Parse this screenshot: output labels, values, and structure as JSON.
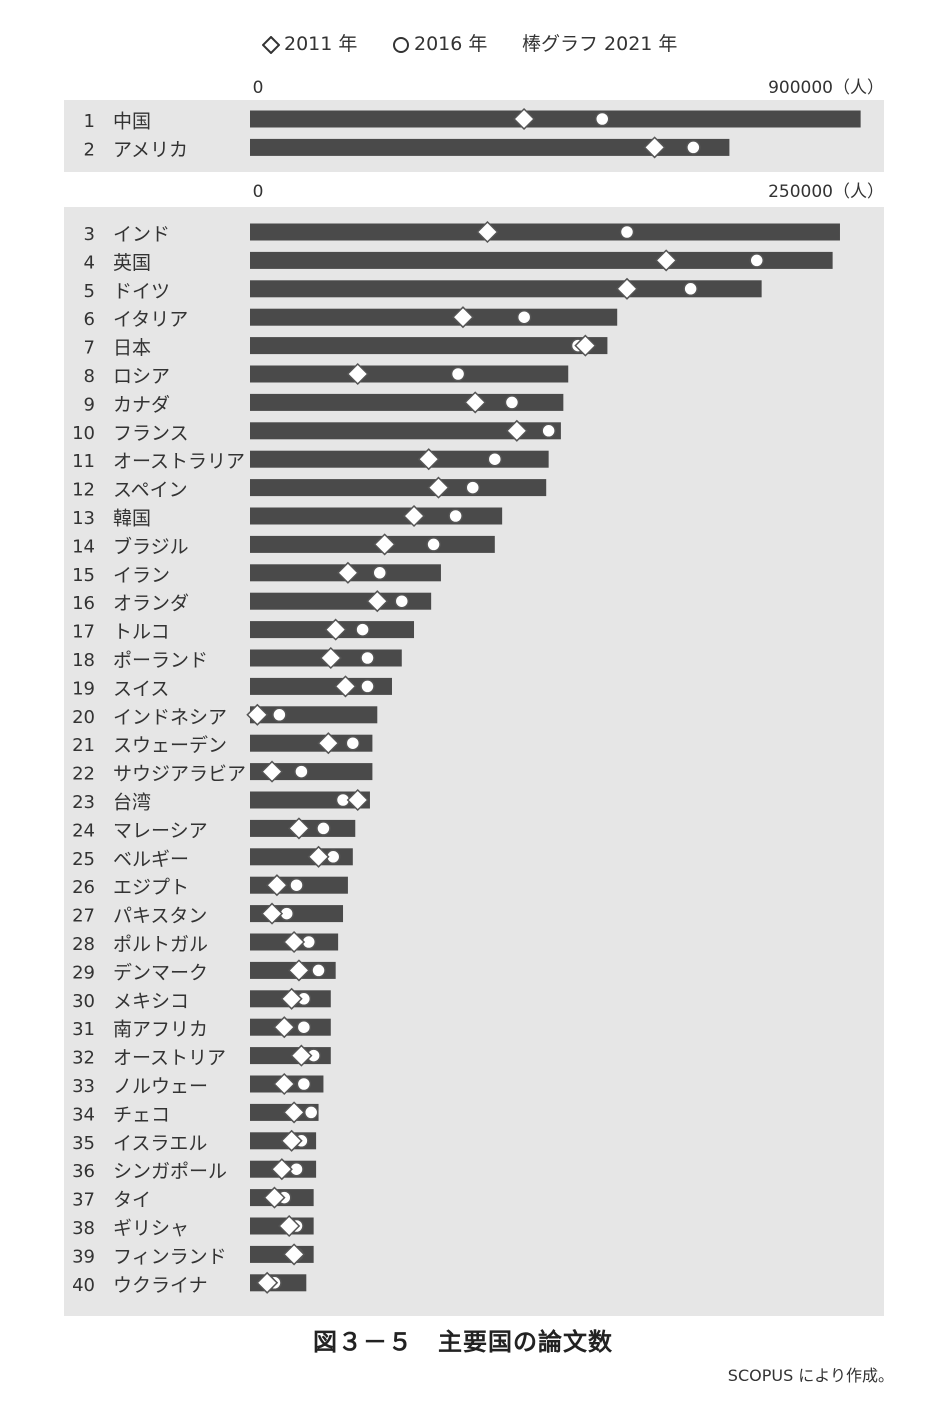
{
  "legend": {
    "diamond_label": "2011 年",
    "circle_label": "2016 年",
    "bar_label": "棒グラフ 2021 年"
  },
  "caption": "図３－５　主要国の論文数",
  "source": "SCOPUS により作成。",
  "colors": {
    "bar": "#4a4a4a",
    "panel": "#e6e6e6",
    "marker_fill": "#ffffff",
    "marker_stroke": "#555555"
  },
  "chart_data": [
    {
      "type": "bar",
      "orientation": "horizontal",
      "axis_min_label": "0",
      "axis_max_label": "900000（人）",
      "xlim": [
        0,
        900000
      ],
      "ranks": [
        "1",
        "2"
      ],
      "categories": [
        "中国",
        "アメリカ"
      ],
      "series": [
        {
          "name": "2021 年",
          "mark": "bar",
          "values": [
            898000,
            705000
          ]
        },
        {
          "name": "2011 年",
          "mark": "diamond",
          "values": [
            403000,
            595000
          ]
        },
        {
          "name": "2016 年",
          "mark": "circle",
          "values": [
            518000,
            652000
          ]
        }
      ]
    },
    {
      "type": "bar",
      "orientation": "horizontal",
      "axis_min_label": "0",
      "axis_max_label": "250000（人）",
      "xlim": [
        0,
        250000
      ],
      "ranks": [
        "3",
        "4",
        "5",
        "6",
        "7",
        "8",
        "9",
        "10",
        "11",
        "12",
        "13",
        "14",
        "15",
        "16",
        "17",
        "18",
        "19",
        "20",
        "21",
        "22",
        "23",
        "24",
        "25",
        "26",
        "27",
        "28",
        "29",
        "30",
        "31",
        "32",
        "33",
        "34",
        "35",
        "36",
        "37",
        "38",
        "39",
        "40"
      ],
      "categories": [
        "インド",
        "英国",
        "ドイツ",
        "イタリア",
        "日本",
        "ロシア",
        "カナダ",
        "フランス",
        "オーストラリア",
        "スペイン",
        "韓国",
        "ブラジル",
        "イラン",
        "オランダ",
        "トルコ",
        "ポーランド",
        "スイス",
        "インドネシア",
        "スウェーデン",
        "サウジアラビア",
        "台湾",
        "マレーシア",
        "ベルギー",
        "エジプト",
        "パキスタン",
        "ポルトガル",
        "デンマーク",
        "メキシコ",
        "南アフリカ",
        "オーストリア",
        "ノルウェー",
        "チェコ",
        "イスラエル",
        "シンガポール",
        "タイ",
        "ギリシャ",
        "フィンランド",
        "ウクライナ"
      ],
      "series": [
        {
          "name": "2021 年",
          "mark": "bar",
          "values": [
            241000,
            238000,
            209000,
            150000,
            146000,
            130000,
            128000,
            127000,
            122000,
            121000,
            103000,
            100000,
            78000,
            74000,
            67000,
            62000,
            58000,
            52000,
            50000,
            50000,
            49000,
            43000,
            42000,
            40000,
            38000,
            36000,
            35000,
            33000,
            33000,
            33000,
            30000,
            28000,
            27000,
            27000,
            26000,
            26000,
            26000,
            23000
          ]
        },
        {
          "name": "2011 年",
          "mark": "diamond",
          "values": [
            97000,
            170000,
            154000,
            87000,
            137000,
            44000,
            92000,
            109000,
            73000,
            77000,
            67000,
            55000,
            40000,
            52000,
            35000,
            33000,
            39000,
            3000,
            32000,
            9000,
            44000,
            20000,
            28000,
            11000,
            9000,
            18000,
            20000,
            17000,
            14000,
            21000,
            14000,
            18000,
            17000,
            13000,
            10000,
            16000,
            18000,
            7000
          ]
        },
        {
          "name": "2016 年",
          "mark": "circle",
          "values": [
            154000,
            207000,
            180000,
            112000,
            134000,
            85000,
            107000,
            122000,
            100000,
            91000,
            84000,
            75000,
            53000,
            62000,
            46000,
            48000,
            48000,
            12000,
            42000,
            21000,
            38000,
            30000,
            34000,
            19000,
            15000,
            24000,
            28000,
            22000,
            22000,
            26000,
            22000,
            25000,
            21000,
            19000,
            14000,
            19000,
            19000,
            10000
          ]
        }
      ]
    }
  ]
}
